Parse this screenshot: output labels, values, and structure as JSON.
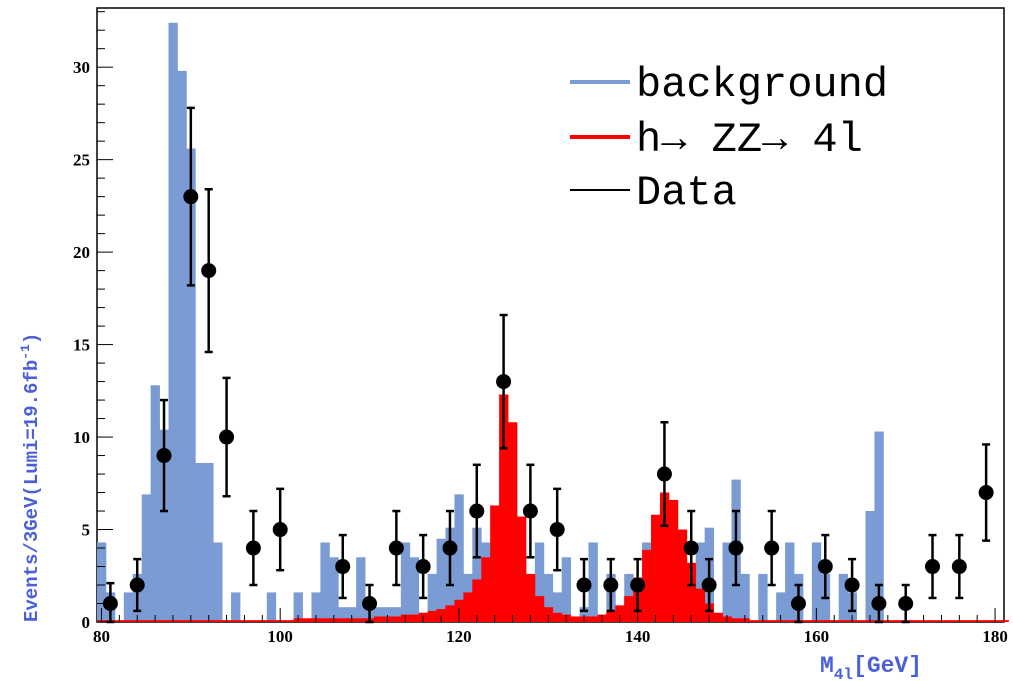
{
  "chart_data": {
    "type": "bar",
    "x_range": [
      79.5,
      181
    ],
    "ylim": [
      0,
      33.2
    ],
    "bin_width": 1,
    "xlabel_main": "M",
    "xlabel_sub": "4l",
    "xlabel_unit": "[GeV]",
    "ylabel": "Events/3GeV(Lumi=19.6fb",
    "ylabel_sup": "-1",
    "ylabel_close": ")",
    "x_ticks": [
      80,
      100,
      120,
      140,
      160,
      180
    ],
    "y_ticks": [
      0,
      5,
      10,
      15,
      20,
      25,
      30
    ],
    "legend": {
      "position": "top-right",
      "background_label": "background",
      "signal_label": "h→ ZZ→ 4l",
      "data_label": "Data"
    },
    "colors": {
      "background": "#7b9bd4",
      "signal": "#ff0000",
      "data": "#000000"
    },
    "series": [
      {
        "name": "background",
        "x_start": 79.5,
        "values": [
          4.3,
          1.6,
          0,
          1.6,
          2.6,
          6.9,
          12.8,
          10.4,
          32.4,
          29.8,
          25.6,
          8.6,
          8.6,
          4.3,
          0,
          1.6,
          0,
          0,
          0,
          1.6,
          0,
          0,
          1.6,
          0,
          1.6,
          4.3,
          3.5,
          0.8,
          0.8,
          3.5,
          0.8,
          0.8,
          0.8,
          0.8,
          4.3,
          3.5,
          0.5,
          2.6,
          4.5,
          5.1,
          6.9,
          2.6,
          5.1,
          4.3,
          2.6,
          5.1,
          2.6,
          3.5,
          1.6,
          4.3,
          2.6,
          1.6,
          3.5,
          0,
          0.8,
          4.3,
          0,
          2.6,
          0,
          2.6,
          0,
          4.3,
          4.3,
          0,
          0,
          1.6,
          0,
          4.3,
          5.1,
          0,
          4.3,
          7.7,
          2.6,
          0,
          2.6,
          0,
          1.6,
          4.3,
          2.6,
          0,
          4.3,
          2.6,
          0,
          2.6,
          1.6,
          0,
          6.0,
          10.3
        ]
      },
      {
        "name": "h→ ZZ→ 4l",
        "x_start": 79.5,
        "values": [
          0.1,
          0.1,
          0.1,
          0.1,
          0.1,
          0.1,
          0.1,
          0.1,
          0.1,
          0.1,
          0.1,
          0.1,
          0.1,
          0.1,
          0.1,
          0.1,
          0.1,
          0.1,
          0.1,
          0.1,
          0.1,
          0.1,
          0.2,
          0.2,
          0.2,
          0.2,
          0.2,
          0.2,
          0.2,
          0.2,
          0.2,
          0.3,
          0.3,
          0.3,
          0.4,
          0.4,
          0.5,
          0.6,
          0.7,
          0.9,
          1.2,
          1.6,
          2.3,
          3.5,
          6.3,
          12.3,
          10.8,
          5.7,
          2.6,
          1.4,
          0.8,
          0.5,
          0.4,
          0.3,
          0.3,
          0.3,
          0.4,
          0.6,
          0.9,
          1.4,
          2.4,
          3.9,
          5.8,
          7.0,
          6.6,
          5.0,
          3.2,
          1.8,
          1.0,
          0.5,
          0.3,
          0.2,
          0.2,
          0.1,
          0.1,
          0.1,
          0.1,
          0.1,
          0.1,
          0.1,
          0.1,
          0.1,
          0.1,
          0.1,
          0.1,
          0.1,
          0.1,
          0.1,
          0.1,
          0.1,
          0.1,
          0.1,
          0.1,
          0.1,
          0.1,
          0.1,
          0.1,
          0.1,
          0.1,
          0.1,
          0.1,
          0.1
        ]
      },
      {
        "name": "Data",
        "points": [
          {
            "x": 81,
            "y": 1,
            "err": 1.1
          },
          {
            "x": 84,
            "y": 2,
            "err": 1.4
          },
          {
            "x": 87,
            "y": 9,
            "err": 3.0
          },
          {
            "x": 90,
            "y": 23,
            "err": 4.8
          },
          {
            "x": 92,
            "y": 19,
            "err": 4.4
          },
          {
            "x": 94,
            "y": 10,
            "err": 3.2
          },
          {
            "x": 97,
            "y": 4,
            "err": 2.0
          },
          {
            "x": 100,
            "y": 5,
            "err": 2.2
          },
          {
            "x": 107,
            "y": 3,
            "err": 1.7
          },
          {
            "x": 110,
            "y": 1,
            "err": 1.0
          },
          {
            "x": 113,
            "y": 4,
            "err": 2.0
          },
          {
            "x": 116,
            "y": 3,
            "err": 1.7
          },
          {
            "x": 119,
            "y": 4,
            "err": 2.0
          },
          {
            "x": 122,
            "y": 6,
            "err": 2.5
          },
          {
            "x": 125,
            "y": 13,
            "err": 3.6
          },
          {
            "x": 128,
            "y": 6,
            "err": 2.5
          },
          {
            "x": 131,
            "y": 5,
            "err": 2.2
          },
          {
            "x": 134,
            "y": 2,
            "err": 1.4
          },
          {
            "x": 137,
            "y": 2,
            "err": 1.4
          },
          {
            "x": 140,
            "y": 2,
            "err": 1.4
          },
          {
            "x": 143,
            "y": 8,
            "err": 2.8
          },
          {
            "x": 146,
            "y": 4,
            "err": 2.0
          },
          {
            "x": 148,
            "y": 2,
            "err": 1.4
          },
          {
            "x": 151,
            "y": 4,
            "err": 2.0
          },
          {
            "x": 155,
            "y": 4,
            "err": 2.0
          },
          {
            "x": 158,
            "y": 1,
            "err": 1.0
          },
          {
            "x": 161,
            "y": 3,
            "err": 1.7
          },
          {
            "x": 164,
            "y": 2,
            "err": 1.4
          },
          {
            "x": 167,
            "y": 1,
            "err": 1.0
          },
          {
            "x": 170,
            "y": 1,
            "err": 1.0
          },
          {
            "x": 173,
            "y": 3,
            "err": 1.7
          },
          {
            "x": 176,
            "y": 3,
            "err": 1.7
          },
          {
            "x": 179,
            "y": 7,
            "err": 2.6
          }
        ]
      }
    ]
  }
}
